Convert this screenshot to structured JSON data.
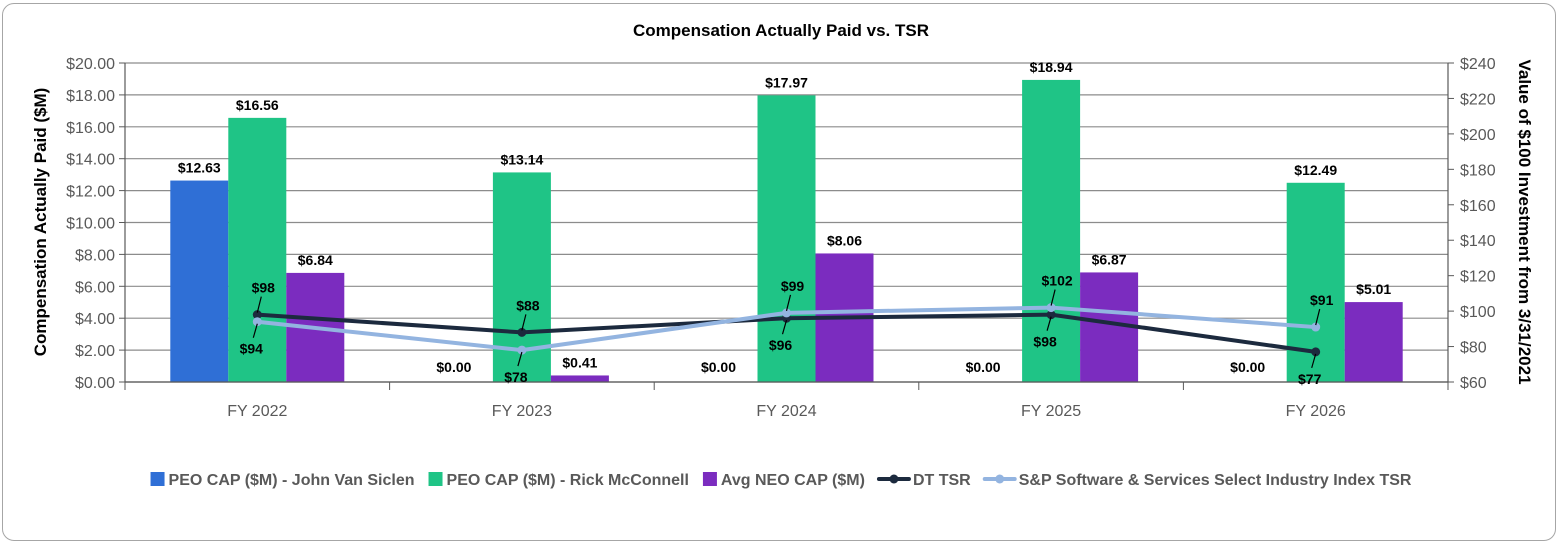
{
  "chart_data": {
    "type": "bar",
    "title": "Compensation Actually Paid vs. TSR",
    "ylabel": "Compensation Actually Paid ($M)",
    "y2label": "Value of $100 Investment from 3/31/2021",
    "categories": [
      "FY 2022",
      "FY 2023",
      "FY 2024",
      "FY 2025",
      "FY 2026"
    ],
    "ylim": [
      0,
      20
    ],
    "y_ticks": [
      "$0.00",
      "$2.00",
      "$4.00",
      "$6.00",
      "$8.00",
      "$10.00",
      "$12.00",
      "$14.00",
      "$16.00",
      "$18.00",
      "$20.00"
    ],
    "y2lim": [
      60,
      240
    ],
    "y2_ticks": [
      "$60",
      "$80",
      "$100",
      "$120",
      "$140",
      "$160",
      "$180",
      "$200",
      "$220",
      "$240"
    ],
    "grid": true,
    "legend_position": "bottom",
    "bar_series": [
      {
        "name": "PEO CAP ($M) - John Van Siclen",
        "color": "#2f6fd6",
        "values": [
          12.63,
          0,
          0,
          0,
          0
        ],
        "labels": [
          "$12.63",
          "$0.00",
          "$0.00",
          "$0.00",
          "$0.00"
        ]
      },
      {
        "name": "PEO CAP ($M) - Rick McConnell",
        "color": "#1fc486",
        "values": [
          16.56,
          13.14,
          17.97,
          18.94,
          12.49
        ],
        "labels": [
          "$16.56",
          "$13.14",
          "$17.97",
          "$18.94",
          "$12.49"
        ]
      },
      {
        "name": "Avg NEO CAP ($M)",
        "color": "#7b2cbf",
        "values": [
          6.84,
          0.41,
          8.06,
          6.87,
          5.01
        ],
        "labels": [
          "$6.84",
          "$0.41",
          "$8.06",
          "$6.87",
          "$5.01"
        ]
      }
    ],
    "line_series": [
      {
        "name": "DT TSR",
        "color": "#1c2a3e",
        "values": [
          98,
          88,
          96,
          98,
          77
        ],
        "labels": [
          "$98",
          "$88",
          "$96",
          "$98",
          "$77"
        ]
      },
      {
        "name": "S&P Software & Services Select Industry Index TSR",
        "color": "#93b4e0",
        "values": [
          94,
          78,
          99,
          102,
          91
        ],
        "labels": [
          "$94",
          "$78",
          "$99",
          "$102",
          "$91"
        ]
      }
    ]
  }
}
